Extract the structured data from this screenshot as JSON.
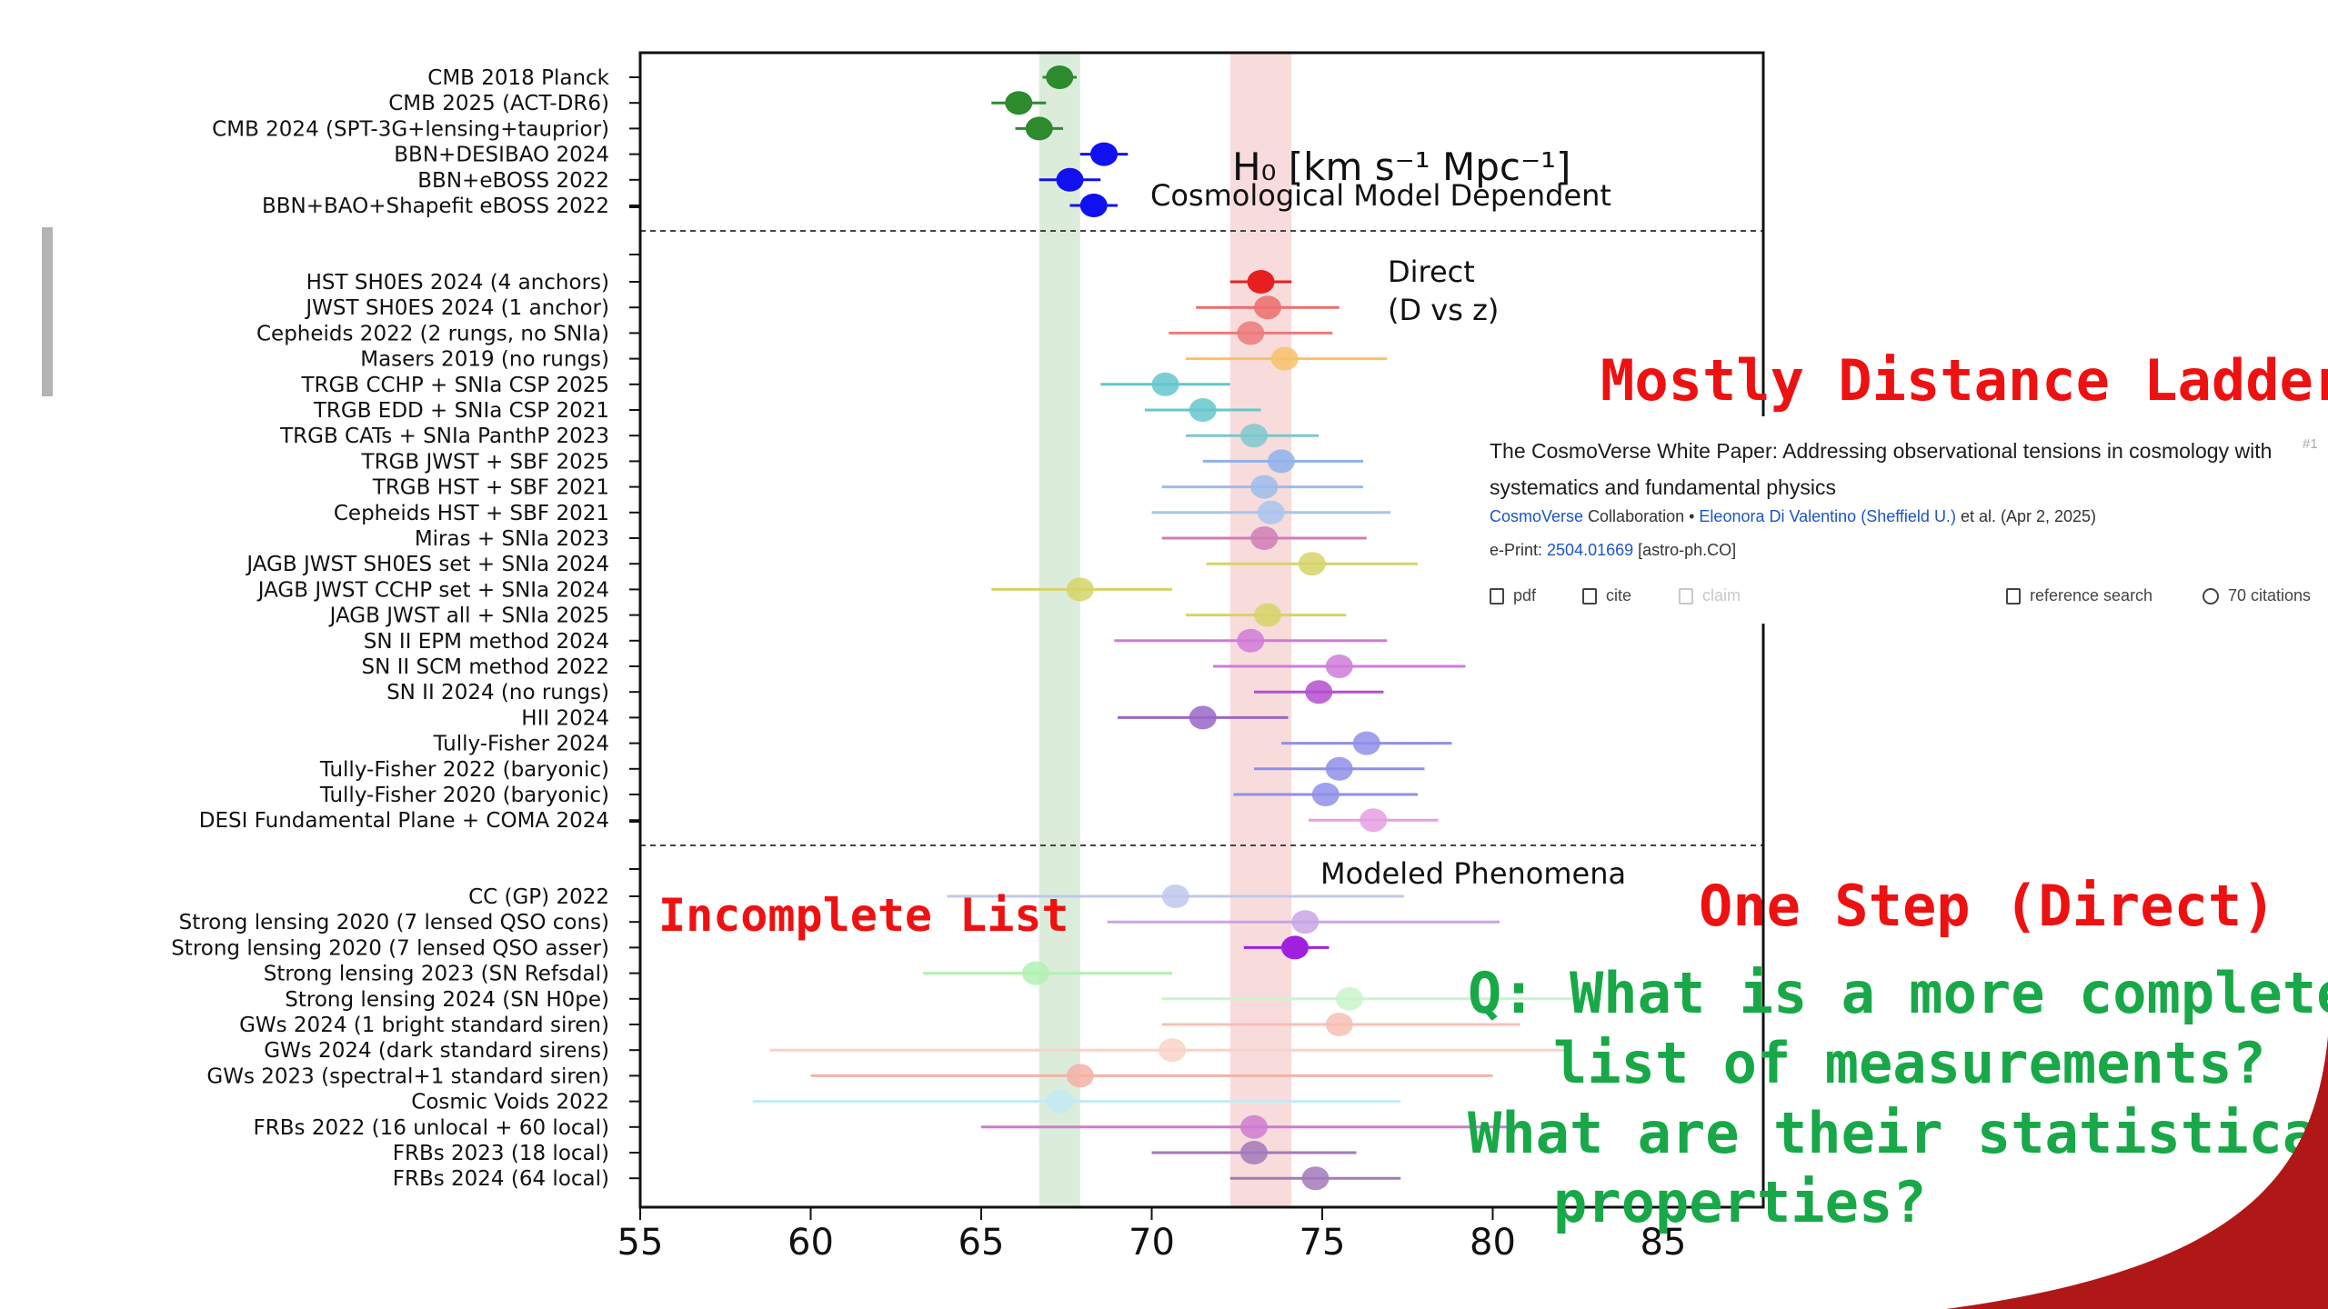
{
  "chart_data": {
    "type": "scatter",
    "xlabel": "",
    "xticks": [
      55,
      60,
      65,
      70,
      75,
      80,
      85
    ],
    "xlim": [
      55,
      88
    ],
    "bands": [
      {
        "from": 66.7,
        "to": 67.9,
        "color": "#cfe5cf"
      },
      {
        "from": 72.3,
        "to": 74.1,
        "color": "#f6d0d0"
      }
    ],
    "sections": [
      {
        "labels": [
          "H₀ [km s⁻¹ Mpc⁻¹]",
          "Cosmological Model Dependent"
        ],
        "points": [
          {
            "label": "CMB 2018 Planck",
            "x": 67.3,
            "lo": 66.8,
            "hi": 67.8,
            "color": "#2d8a2d"
          },
          {
            "label": "CMB 2025 (ACT-DR6)",
            "x": 66.1,
            "lo": 65.3,
            "hi": 66.9,
            "color": "#2d8a2d"
          },
          {
            "label": "CMB 2024 (SPT-3G+lensing+tauprior)",
            "x": 66.7,
            "lo": 66.0,
            "hi": 67.4,
            "color": "#2d8a2d"
          },
          {
            "label": "BBN+DESIBAO 2024",
            "x": 68.6,
            "lo": 67.9,
            "hi": 69.3,
            "color": "#1010f0"
          },
          {
            "label": "BBN+eBOSS 2022",
            "x": 67.6,
            "lo": 66.7,
            "hi": 68.5,
            "color": "#1010f0"
          },
          {
            "label": "BBN+BAO+Shapefit eBOSS 2022",
            "x": 68.3,
            "lo": 67.6,
            "hi": 69.0,
            "color": "#1010f0"
          }
        ]
      },
      {
        "labels": [
          "Direct",
          "(D vs z)"
        ],
        "points": [
          {
            "label": "HST SH0ES 2024 (4 anchors)",
            "x": 73.2,
            "lo": 72.3,
            "hi": 74.1,
            "color": "#e62020"
          },
          {
            "label": "JWST SH0ES 2024 (1 anchor)",
            "x": 73.4,
            "lo": 71.3,
            "hi": 75.5,
            "color": "#ec6d6d"
          },
          {
            "label": "Cepheids 2022 (2 rungs, no SNIa)",
            "x": 72.9,
            "lo": 70.5,
            "hi": 75.3,
            "color": "#ec7a7a"
          },
          {
            "label": "Masers 2019 (no rungs)",
            "x": 73.9,
            "lo": 71.0,
            "hi": 76.9,
            "color": "#f7c268"
          },
          {
            "label": "TRGB CCHP + SNIa CSP 2025",
            "x": 70.4,
            "lo": 68.5,
            "hi": 72.3,
            "color": "#63c5cc"
          },
          {
            "label": "TRGB EDD + SNIa CSP 2021",
            "x": 71.5,
            "lo": 69.8,
            "hi": 73.2,
            "color": "#66c7cc"
          },
          {
            "label": "TRGB CATs + SNIa PanthP 2023",
            "x": 73.0,
            "lo": 71.0,
            "hi": 74.9,
            "color": "#7cc8cc"
          },
          {
            "label": "TRGB JWST + SBF 2025",
            "x": 73.8,
            "lo": 71.5,
            "hi": 76.2,
            "color": "#8fb2ec"
          },
          {
            "label": "TRGB HST + SBF 2021",
            "x": 73.3,
            "lo": 70.3,
            "hi": 76.2,
            "color": "#9cbcec"
          },
          {
            "label": "Cepheids HST + SBF 2021",
            "x": 73.5,
            "lo": 70.0,
            "hi": 77.0,
            "color": "#a8c4ee"
          },
          {
            "label": "Miras + SNIa 2023",
            "x": 73.3,
            "lo": 70.3,
            "hi": 76.3,
            "color": "#cf7eb7"
          },
          {
            "label": "JAGB JWST SH0ES set + SNIa 2024",
            "x": 74.7,
            "lo": 71.6,
            "hi": 77.8,
            "color": "#d6d468"
          },
          {
            "label": "JAGB JWST CCHP set + SNIa 2024",
            "x": 67.9,
            "lo": 65.3,
            "hi": 70.6,
            "color": "#d6d468"
          },
          {
            "label": "JAGB JWST all + SNIa 2025",
            "x": 73.4,
            "lo": 71.0,
            "hi": 75.7,
            "color": "#d6d468"
          },
          {
            "label": "SN II EPM method 2024",
            "x": 72.9,
            "lo": 68.9,
            "hi": 76.9,
            "color": "#cf7bd9"
          },
          {
            "label": "SN II SCM method 2022",
            "x": 75.5,
            "lo": 71.8,
            "hi": 79.2,
            "color": "#cf7bd9"
          },
          {
            "label": "SN II 2024 (no rungs)",
            "x": 74.9,
            "lo": 73.0,
            "hi": 76.8,
            "color": "#b44fcf"
          },
          {
            "label": "HII 2024",
            "x": 71.5,
            "lo": 69.0,
            "hi": 74.0,
            "color": "#9a66c7"
          },
          {
            "label": "Tully-Fisher 2024",
            "x": 76.3,
            "lo": 73.8,
            "hi": 78.8,
            "color": "#8f8fe9"
          },
          {
            "label": "Tully-Fisher 2022 (baryonic)",
            "x": 75.5,
            "lo": 73.0,
            "hi": 78.0,
            "color": "#8f8fe9"
          },
          {
            "label": "Tully-Fisher 2020 (baryonic)",
            "x": 75.1,
            "lo": 72.4,
            "hi": 77.8,
            "color": "#8f8fe9"
          },
          {
            "label": "DESI Fundamental Plane + COMA 2024",
            "x": 76.5,
            "lo": 74.6,
            "hi": 78.4,
            "color": "#e5a0e3"
          }
        ]
      },
      {
        "labels": [
          "Modeled Phenomena"
        ],
        "points": [
          {
            "label": "CC (GP) 2022",
            "x": 70.7,
            "lo": 64.0,
            "hi": 77.4,
            "color": "#c0c8ec"
          },
          {
            "label": "Strong lensing 2020 (7 lensed QSO cons)",
            "x": 74.5,
            "lo": 68.7,
            "hi": 80.2,
            "color": "#c9a4e6"
          },
          {
            "label": "Strong lensing 2020 (7 lensed QSO asser)",
            "x": 74.2,
            "lo": 72.7,
            "hi": 75.2,
            "color": "#a020e0"
          },
          {
            "label": "Strong lensing 2023 (SN Refsdal)",
            "x": 66.6,
            "lo": 63.3,
            "hi": 70.6,
            "color": "#b1f1b1"
          },
          {
            "label": "Strong lensing 2024 (SN H0pe)",
            "x": 75.8,
            "lo": 70.3,
            "hi": 83.2,
            "color": "#caf4ca"
          },
          {
            "label": "GWs 2024 (1 bright standard siren)",
            "x": 75.5,
            "lo": 70.3,
            "hi": 80.8,
            "color": "#f6c0b4"
          },
          {
            "label": "GWs 2024 (dark standard sirens)",
            "x": 70.6,
            "lo": 58.8,
            "hi": 82.3,
            "color": "#f7d3c8"
          },
          {
            "label": "GWs 2023 (spectral+1 standard siren)",
            "x": 67.9,
            "lo": 60.0,
            "hi": 80.0,
            "color": "#f4b2a6"
          },
          {
            "label": "Cosmic Voids 2022",
            "x": 67.3,
            "lo": 58.3,
            "hi": 77.3,
            "color": "#c4eaf4"
          },
          {
            "label": "FRBs 2022 (16 unlocal + 60 local)",
            "x": 73.0,
            "lo": 65.0,
            "hi": 81.0,
            "color": "#cf7bd0"
          },
          {
            "label": "FRBs 2023 (18 local)",
            "x": 73.0,
            "lo": 70.0,
            "hi": 76.0,
            "color": "#a27ab9"
          },
          {
            "label": "FRBs 2024 (64 local)",
            "x": 74.8,
            "lo": 72.3,
            "hi": 77.3,
            "color": "#a27ab9"
          }
        ]
      }
    ]
  },
  "annotations": {
    "mostly_distance_ladder": "Mostly Distance Ladder",
    "incomplete_list": "Incomplete List",
    "one_step": "One Step (Direct)",
    "question_lines": [
      "Q: What is a more complete",
      "list of measurements?",
      "What are their statistical",
      "properties?"
    ]
  },
  "paper_card": {
    "title": "The CosmoVerse White Paper: Addressing observational tensions in cosmology with systematics and fundamental physics",
    "index": "#1",
    "collaboration": "CosmoVerse",
    "collaboration_suffix": " Collaboration • ",
    "author": "Eleonora Di Valentino",
    "affiliation": "(Sheffield U.)",
    "author_suffix": " et al. (Apr 2, 2025)",
    "eprint_prefix": "e-Print: ",
    "eprint_id": "2504.01669",
    "eprint_category": " [astro-ph.CO]",
    "actions": {
      "pdf": "pdf",
      "cite": "cite",
      "claim": "claim",
      "reference_search": "reference search",
      "citations": "70 citations"
    }
  },
  "colors": {
    "annotation_red": "#ee1111",
    "annotation_green": "#18a848",
    "corner_red": "#b01818"
  }
}
